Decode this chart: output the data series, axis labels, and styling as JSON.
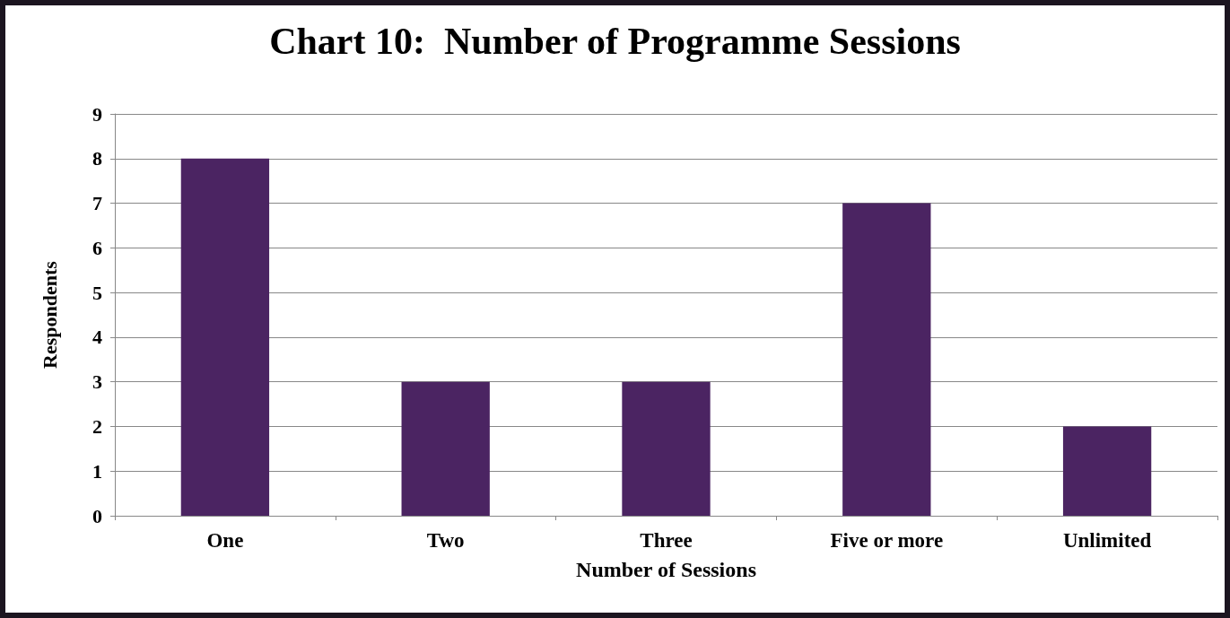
{
  "chart_data": {
    "type": "bar",
    "title": "Chart 10:  Number of Programme Sessions",
    "xlabel": "Number of Sessions",
    "ylabel": "Respondents",
    "categories": [
      "One",
      "Two",
      "Three",
      "Five or more",
      "Unlimited"
    ],
    "values": [
      8,
      3,
      3,
      7,
      2
    ],
    "color": "#4b2462",
    "ylim": [
      0,
      9
    ],
    "yticks": [
      0,
      1,
      2,
      3,
      4,
      5,
      6,
      7,
      8,
      9
    ],
    "grid": "y"
  }
}
